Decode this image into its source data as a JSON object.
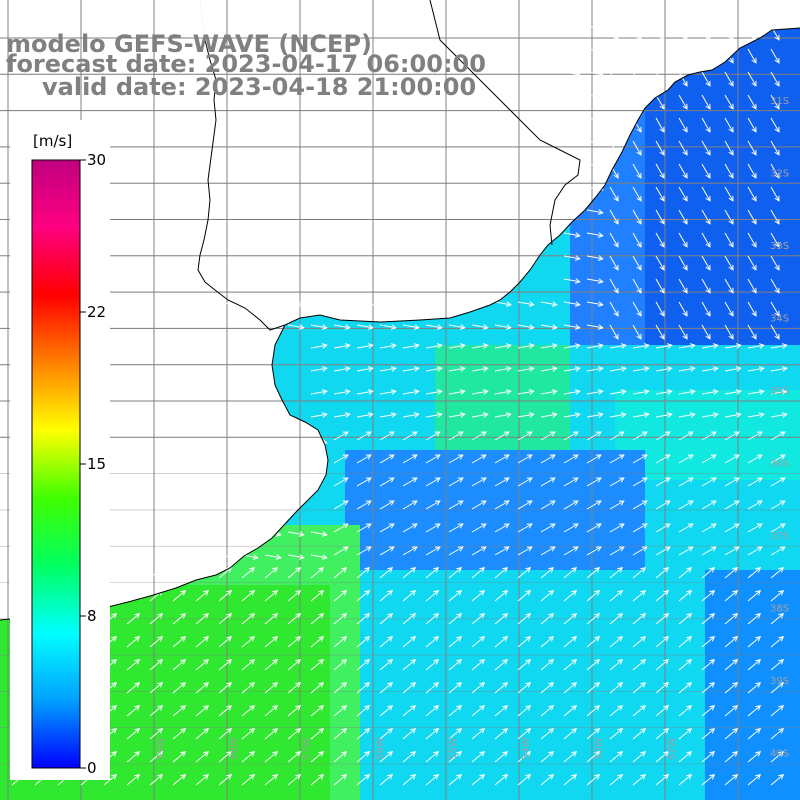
{
  "title": {
    "line1": "modelo GEFS-WAVE (NCEP)",
    "line2": "forecast date: 2023-04-17 06:00:00",
    "line3": "valid date: 2023-04-18 21:00:00"
  },
  "colorbar": {
    "unit": "[m/s]",
    "ticks": [
      "30",
      "22",
      "15",
      "8",
      "0"
    ],
    "min": 0,
    "max": 30,
    "colors": [
      "#0000ff",
      "#00a0ff",
      "#00ffff",
      "#00ff60",
      "#40ff00",
      "#ffff00",
      "#ff8000",
      "#ff0000",
      "#ff0080",
      "#c00080"
    ]
  },
  "colors": {
    "land": "#ffffff",
    "coastline": "#000000",
    "grid": "#808080",
    "arrows": "#ffffff",
    "title_text": "#808080"
  },
  "map": {
    "lat_labels": [
      "31S",
      "32S",
      "33S",
      "34S",
      "35S",
      "36S",
      "37S",
      "38S",
      "39S",
      "40S"
    ],
    "lon_labels": [
      "61W",
      "60W",
      "59W",
      "58W",
      "57W",
      "56W",
      "55W",
      "54W",
      "53W",
      "52W"
    ]
  }
}
